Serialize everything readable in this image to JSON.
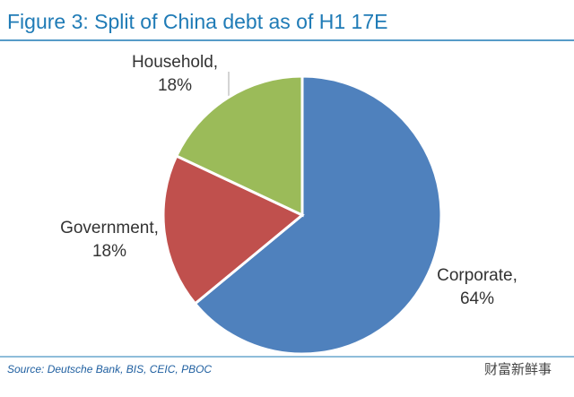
{
  "chart_data": {
    "type": "pie",
    "title": "Figure 3: Split of China debt as of H1 17E",
    "categories": [
      "Corporate,",
      "Government,",
      "Household,"
    ],
    "values": [
      64,
      18,
      18
    ],
    "value_labels": [
      "64%",
      "18%",
      "18%"
    ],
    "colors": [
      "#4f81bd",
      "#c0504d",
      "#9bbb59"
    ],
    "source": "Source: Deutsche Bank, BIS, CEIC, PBOC",
    "watermark": "财富新鲜事"
  }
}
